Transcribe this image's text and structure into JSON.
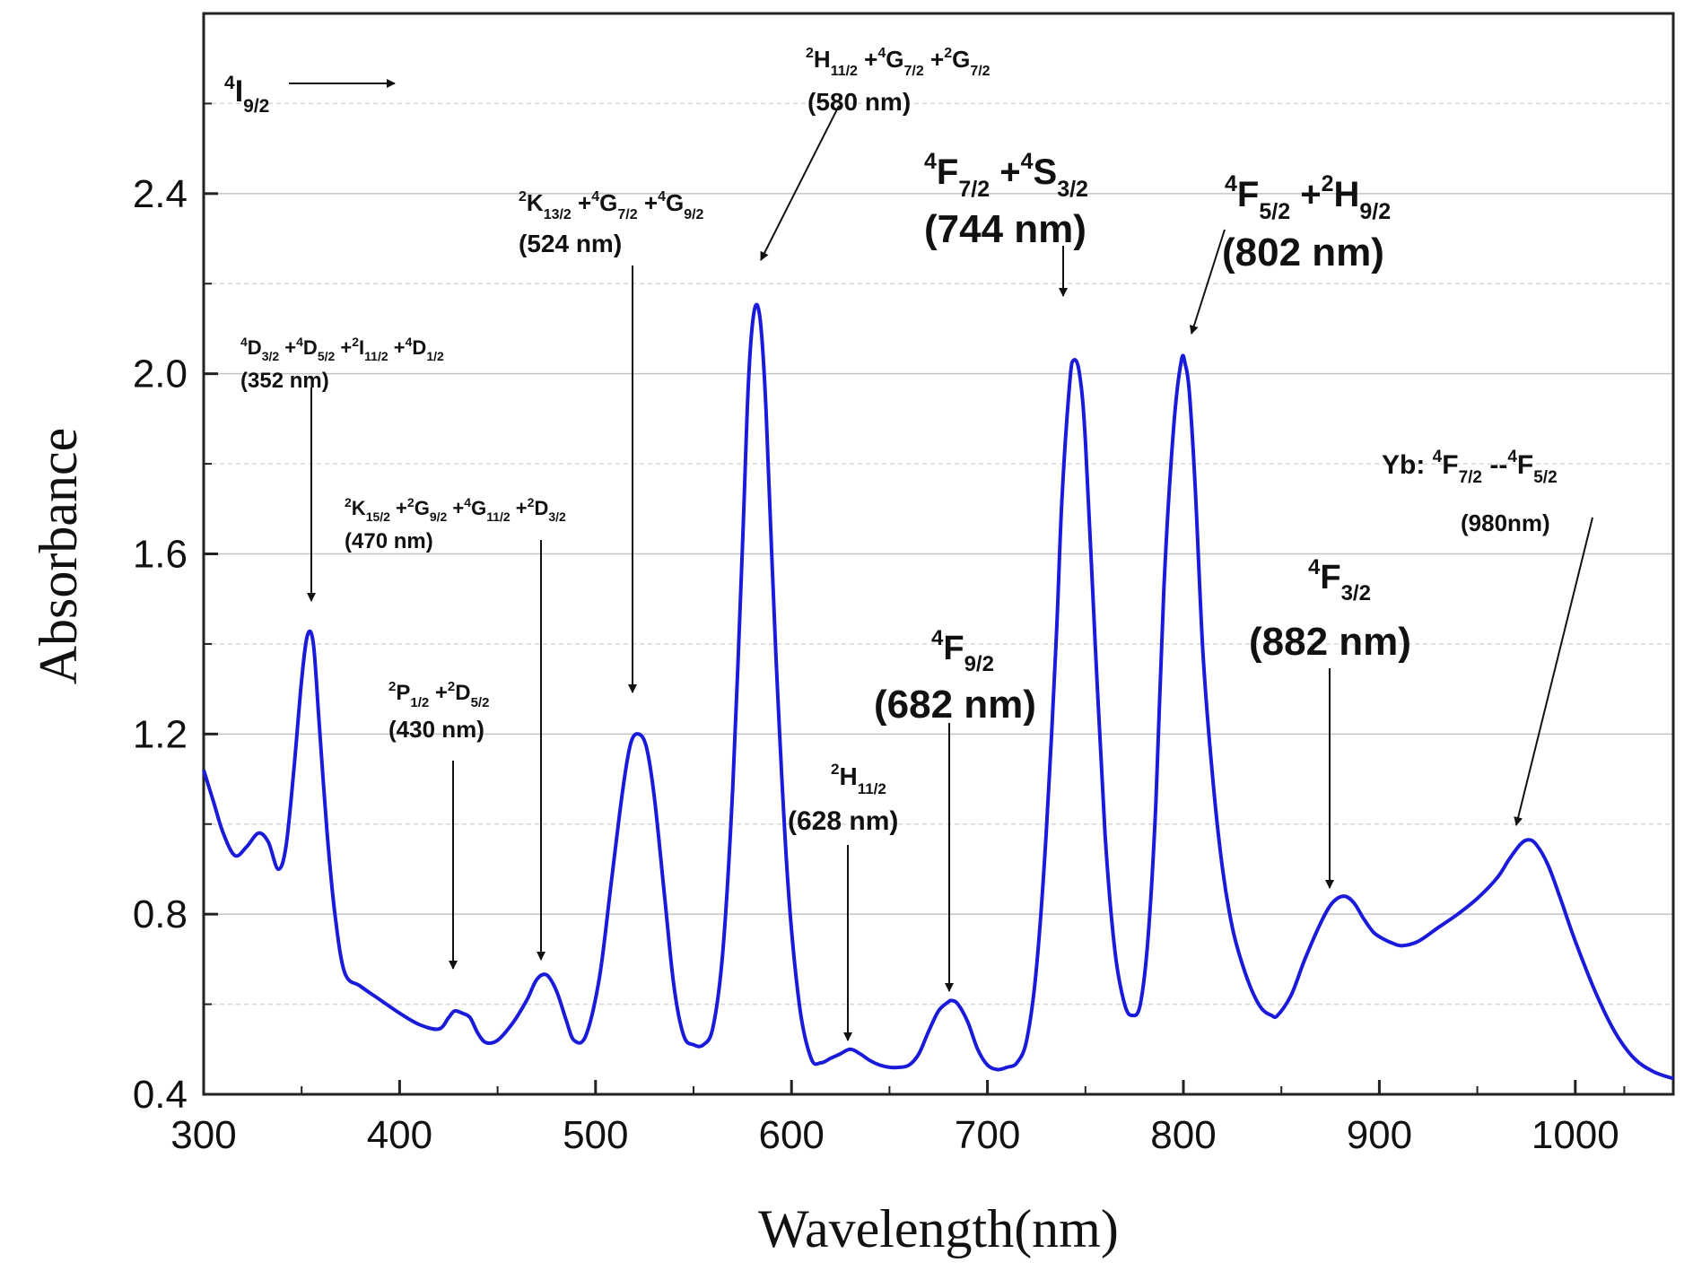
{
  "chart_data": {
    "type": "line",
    "xlabel": "Wavelength(nm)",
    "ylabel": "Absorbance",
    "xlim": [
      300,
      1050
    ],
    "ylim": [
      0.4,
      2.8
    ],
    "xticks": [
      300,
      400,
      500,
      600,
      700,
      800,
      900,
      1000
    ],
    "yticks": [
      0.4,
      0.8,
      1.2,
      1.6,
      2.0,
      2.4
    ],
    "ytick_labels": [
      "0.4",
      "0.8",
      "1.2",
      "1.6",
      "2.0",
      "2.4"
    ],
    "grid": true,
    "line_color": "#1a1adb",
    "series": [
      {
        "x": [
          300,
          305,
          310,
          316,
          322,
          328,
          333,
          338,
          342,
          346,
          350,
          353,
          356,
          359,
          363,
          367,
          372,
          380,
          390,
          400,
          410,
          420,
          425,
          428,
          432,
          436,
          440,
          444,
          450,
          458,
          465,
          470,
          475,
          480,
          485,
          489,
          495,
          502,
          508,
          514,
          518,
          522,
          526,
          530,
          535,
          540,
          545,
          550,
          555,
          560,
          565,
          570,
          575,
          578,
          581,
          584,
          587,
          592,
          598,
          604,
          610,
          615,
          620,
          625,
          630,
          635,
          640,
          645,
          650,
          655,
          660,
          665,
          670,
          675,
          680,
          682,
          685,
          690,
          695,
          700,
          705,
          710,
          715,
          720,
          725,
          730,
          735,
          738,
          742,
          744,
          747,
          750,
          755,
          760,
          765,
          770,
          774,
          778,
          782,
          786,
          790,
          795,
          799,
          801,
          803,
          806,
          810,
          815,
          820,
          825,
          830,
          835,
          840,
          845,
          848,
          855,
          862,
          870,
          876,
          882,
          887,
          892,
          897,
          902,
          907,
          912,
          920,
          930,
          940,
          950,
          960,
          966,
          972,
          976,
          980,
          986,
          992,
          1000,
          1010,
          1020,
          1030,
          1040,
          1050
        ],
        "y": [
          1.12,
          1.05,
          0.98,
          0.93,
          0.95,
          0.98,
          0.96,
          0.9,
          0.95,
          1.12,
          1.32,
          1.42,
          1.4,
          1.22,
          0.98,
          0.8,
          0.67,
          0.64,
          0.61,
          0.58,
          0.555,
          0.545,
          0.57,
          0.585,
          0.58,
          0.57,
          0.535,
          0.515,
          0.52,
          0.56,
          0.61,
          0.655,
          0.665,
          0.63,
          0.565,
          0.52,
          0.53,
          0.66,
          0.87,
          1.08,
          1.18,
          1.2,
          1.17,
          1.06,
          0.85,
          0.64,
          0.53,
          0.51,
          0.51,
          0.55,
          0.72,
          1.08,
          1.62,
          1.98,
          2.14,
          2.12,
          1.92,
          1.38,
          0.88,
          0.6,
          0.48,
          0.47,
          0.48,
          0.49,
          0.5,
          0.49,
          0.475,
          0.465,
          0.46,
          0.46,
          0.465,
          0.49,
          0.54,
          0.585,
          0.605,
          0.608,
          0.6,
          0.56,
          0.5,
          0.465,
          0.455,
          0.46,
          0.47,
          0.52,
          0.68,
          0.98,
          1.4,
          1.72,
          1.98,
          2.03,
          2.0,
          1.85,
          1.4,
          0.98,
          0.72,
          0.6,
          0.575,
          0.6,
          0.75,
          1.05,
          1.52,
          1.88,
          2.03,
          2.02,
          1.96,
          1.75,
          1.38,
          1.1,
          0.9,
          0.77,
          0.69,
          0.63,
          0.59,
          0.575,
          0.575,
          0.62,
          0.7,
          0.78,
          0.825,
          0.84,
          0.825,
          0.79,
          0.76,
          0.745,
          0.735,
          0.73,
          0.74,
          0.77,
          0.8,
          0.835,
          0.88,
          0.92,
          0.955,
          0.965,
          0.955,
          0.91,
          0.84,
          0.74,
          0.63,
          0.54,
          0.48,
          0.45,
          0.435
        ]
      }
    ],
    "annotations": [
      {
        "lines": [
          [
            "",
            "4",
            "I",
            "9/2",
            ""
          ]
        ]
      },
      {
        "lines": [
          [
            "",
            "2",
            "H",
            "11/2",
            ""
          ],
          [
            " +",
            "4",
            "G",
            "7/2",
            ""
          ],
          [
            " +",
            "2",
            "G",
            "7/2",
            ""
          ]
        ],
        "sub": "(580 nm)"
      },
      {
        "lines": [
          [
            "",
            "2",
            "K",
            "13/2",
            ""
          ],
          [
            " +",
            "4",
            "G",
            "7/2",
            ""
          ],
          [
            " +",
            "4",
            "G",
            "9/2",
            ""
          ]
        ],
        "sub": "(524 nm)"
      },
      {
        "lines": [
          [
            "",
            "4",
            "F",
            "7/2",
            ""
          ],
          [
            " +",
            "4",
            "S",
            "3/2",
            ""
          ]
        ],
        "sub": "(744 nm)"
      },
      {
        "lines": [
          [
            "",
            "4",
            "F",
            "5/2",
            ""
          ],
          [
            " +",
            "2",
            "H",
            "9/2",
            ""
          ]
        ],
        "sub": "(802 nm)"
      },
      {
        "lines": [
          [
            "",
            "4",
            "D",
            "3/2",
            ""
          ],
          [
            " +",
            "4",
            "D",
            "5/2",
            ""
          ],
          [
            " +",
            "2",
            "I",
            "11/2",
            ""
          ],
          [
            " +",
            "4",
            "D",
            "1/2",
            ""
          ]
        ],
        "sub": "(352 nm)"
      },
      {
        "lines": [
          [
            "",
            "2",
            "K",
            "15/2",
            ""
          ],
          [
            " +",
            "2",
            "G",
            "9/2",
            ""
          ],
          [
            " +",
            "4",
            "G",
            "11/2",
            ""
          ],
          [
            " +",
            "2",
            "D",
            "3/2",
            ""
          ]
        ],
        "sub": "(470 nm)"
      },
      {
        "lines": [
          [
            "Yb:   ",
            "4",
            "F",
            "7/2",
            ""
          ],
          [
            " --",
            "4",
            "F",
            "5/2",
            ""
          ]
        ],
        "sub": "(980nm)"
      },
      {
        "lines": [
          [
            "",
            "2",
            "P",
            "1/2",
            ""
          ],
          [
            " +",
            "2",
            "D",
            "5/2",
            ""
          ]
        ],
        "sub": "(430 nm)"
      },
      {
        "lines": [
          [
            "",
            "4",
            "F",
            "9/2",
            ""
          ]
        ],
        "sub": "(682 nm)"
      },
      {
        "lines": [
          [
            "",
            "4",
            "F",
            "3/2",
            ""
          ]
        ],
        "sub": "(882 nm)"
      },
      {
        "lines": [
          [
            "",
            "2",
            "H",
            "11/2",
            ""
          ]
        ],
        "sub": "(628 nm)"
      }
    ]
  }
}
